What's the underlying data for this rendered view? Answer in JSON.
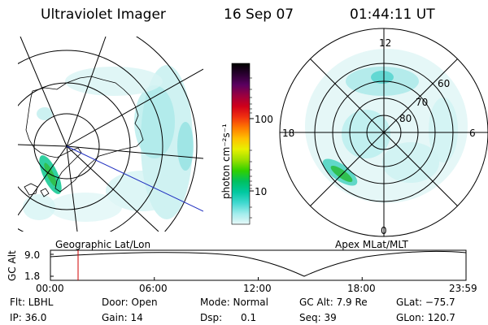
{
  "header": {
    "instrument": "Ultraviolet Imager",
    "date": "16 Sep 07",
    "time": "01:44:11 UT"
  },
  "geo_panel": {
    "caption": "Geographic Lat/Lon"
  },
  "mag_panel": {
    "caption": "Apex MLat/MLT",
    "mlt_labels": [
      "12",
      "18",
      "6",
      "0"
    ],
    "lat_labels": [
      "60",
      "70",
      "80"
    ]
  },
  "colorbar": {
    "unit_label": "photon cm⁻²s⁻¹",
    "tick_labels": [
      "100",
      "10"
    ],
    "colors": [
      "#000000",
      "#2a0030",
      "#5a0060",
      "#9a0040",
      "#d0001a",
      "#f03010",
      "#ff7a00",
      "#ffc000",
      "#e8f000",
      "#9ce000",
      "#30d000",
      "#00c060",
      "#00c8a0",
      "#40d8d0",
      "#a0ecec",
      "#e8f8f8"
    ]
  },
  "timeline": {
    "ylabel": "GC Alt",
    "y_ticks": [
      "9.0",
      "1.8"
    ],
    "x_ticks": [
      "00:00",
      "06:00",
      "12:00",
      "18:00",
      "23:59"
    ],
    "marker_time": "01:44"
  },
  "info": {
    "filter": "Flt: LBHL",
    "ip": "IP: 36.0",
    "door": "Door: Open",
    "gain": "Gain: 14",
    "mode": "Mode: Normal",
    "dsp_label": "Dsp:",
    "dsp_value": "0.1",
    "gc_alt": "GC Alt: 7.9 Re",
    "seq": "Seq: 39",
    "glat": "GLat: −75.7",
    "glon": "GLon: 120.7"
  }
}
